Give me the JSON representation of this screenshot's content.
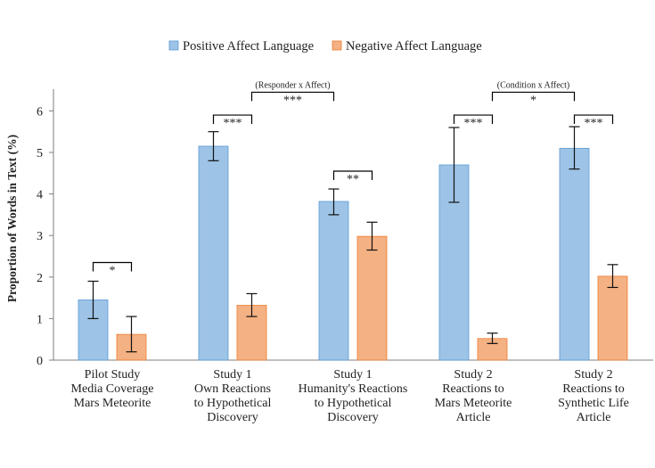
{
  "chart_data": {
    "type": "bar",
    "ylabel": "Proportion of Words in Text (%)",
    "ylim": [
      0,
      6.6
    ],
    "yticks": [
      "0",
      "1",
      "2",
      "3",
      "4",
      "5",
      "6"
    ],
    "legend_position": "top-center",
    "grid": false,
    "colors": {
      "positive": "#9DC3E6",
      "positive_stroke": "#5B9BD5",
      "negative": "#F4B183",
      "negative_stroke": "#ED7D31",
      "axis": "#7F7F7F",
      "bracket": "#000000"
    },
    "categories": [
      [
        "Pilot Study",
        "Media Coverage",
        "Mars Meteorite"
      ],
      [
        "Study 1",
        "Own Reactions",
        "to Hypothetical",
        "Discovery"
      ],
      [
        "Study 1",
        "Humanity's Reactions",
        "to Hypothetical",
        "Discovery"
      ],
      [
        "Study 2",
        "Reactions to",
        "Mars Meteorite",
        "Article"
      ],
      [
        "Study 2",
        "Reactions to",
        "Synthetic Life",
        "Article"
      ]
    ],
    "series": [
      {
        "name": "Positive Affect Language",
        "values": [
          1.45,
          5.15,
          3.82,
          4.7,
          5.1
        ],
        "error_low": [
          1.0,
          4.8,
          3.5,
          3.8,
          4.6
        ],
        "error_high": [
          1.9,
          5.5,
          4.12,
          5.6,
          5.62
        ]
      },
      {
        "name": "Negative Affect Language",
        "values": [
          0.62,
          1.32,
          2.98,
          0.52,
          2.02
        ],
        "error_low": [
          0.2,
          1.05,
          2.65,
          0.4,
          1.75
        ],
        "error_high": [
          1.05,
          1.6,
          3.32,
          0.65,
          2.3
        ]
      }
    ],
    "annotations": [
      {
        "type": "bracket",
        "from": [
          0,
          0
        ],
        "to": [
          0,
          1
        ],
        "y": 2.35,
        "label": "*"
      },
      {
        "type": "bracket",
        "from": [
          1,
          0
        ],
        "to": [
          1,
          1
        ],
        "y": 5.9,
        "label": "***"
      },
      {
        "type": "bracket",
        "from": [
          2,
          0
        ],
        "to": [
          2,
          1
        ],
        "y": 4.55,
        "label": "**"
      },
      {
        "type": "bracket",
        "from": [
          1,
          1
        ],
        "to": [
          2,
          0
        ],
        "y": 6.45,
        "label": "***",
        "title": "(Responder x Affect)"
      },
      {
        "type": "bracket",
        "from": [
          3,
          0
        ],
        "to": [
          3,
          1
        ],
        "y": 5.9,
        "label": "***"
      },
      {
        "type": "bracket",
        "from": [
          4,
          0
        ],
        "to": [
          4,
          1
        ],
        "y": 5.9,
        "label": "***"
      },
      {
        "type": "bracket",
        "from": [
          3,
          1
        ],
        "to": [
          4,
          0
        ],
        "y": 6.45,
        "label": "*",
        "title": "(Condition x Affect)"
      }
    ]
  }
}
